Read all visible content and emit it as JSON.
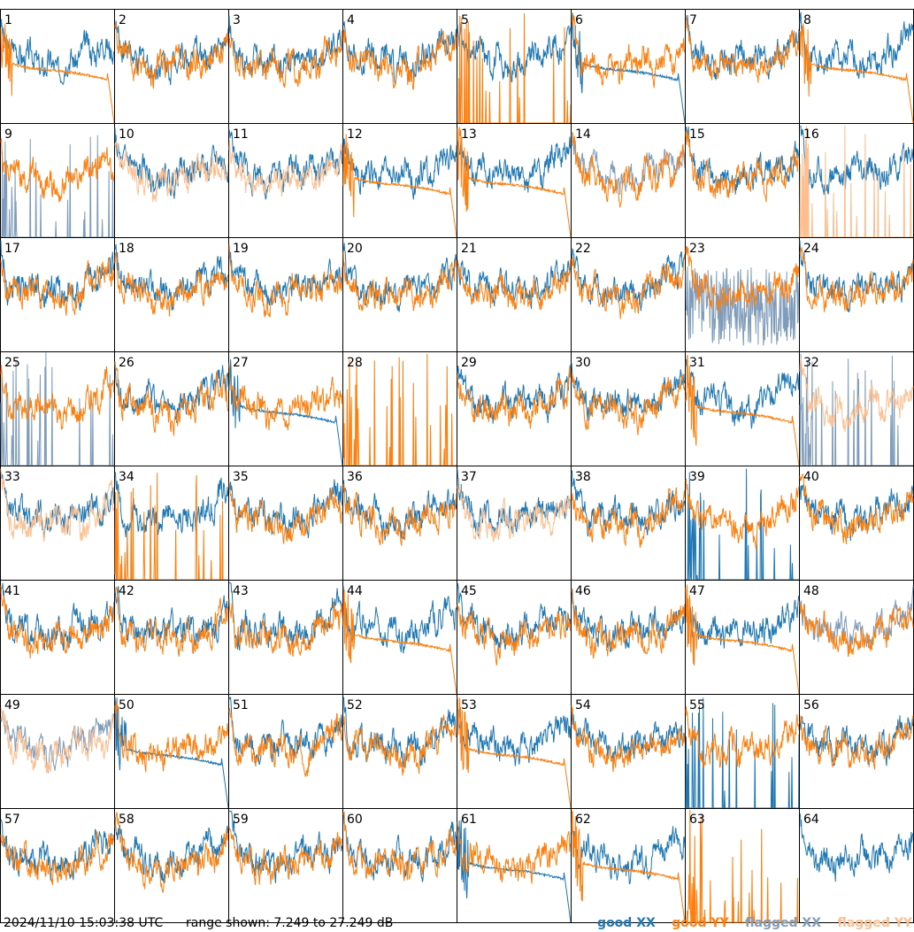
{
  "chart_data": {
    "type": "line",
    "layout": "8x8 grid of per-antenna spectra",
    "panels": [
      "1",
      "2",
      "3",
      "4",
      "5",
      "6",
      "7",
      "8",
      "9",
      "10",
      "11",
      "12",
      "13",
      "14",
      "15",
      "16",
      "17",
      "18",
      "19",
      "20",
      "21",
      "22",
      "23",
      "24",
      "25",
      "26",
      "27",
      "28",
      "29",
      "30",
      "31",
      "32",
      "33",
      "34",
      "35",
      "36",
      "37",
      "38",
      "39",
      "40",
      "41",
      "42",
      "43",
      "44",
      "45",
      "46",
      "47",
      "48",
      "49",
      "50",
      "51",
      "52",
      "53",
      "54",
      "55",
      "56",
      "57",
      "58",
      "59",
      "60",
      "61",
      "62",
      "63",
      "64"
    ],
    "ylim": [
      7.249,
      27.249
    ],
    "yunit": "dB",
    "series": [
      {
        "name": "good XX",
        "color": "#1f77b4"
      },
      {
        "name": "good YY",
        "color": "#ff7f0e"
      },
      {
        "name": "flagged XX",
        "color": "#7f9cba"
      },
      {
        "name": "flagged YY",
        "color": "#fdbf8f"
      }
    ],
    "panel_states": {
      "1": {
        "xx": "good",
        "yy": "good",
        "yy_shape": "decay"
      },
      "5": {
        "xx": "good",
        "yy": "good",
        "yy_shape": "spikes"
      },
      "6": {
        "xx": "good",
        "yy": "good",
        "xx_shape": "decay"
      },
      "8": {
        "xx": "good",
        "yy": "good",
        "yy_shape": "decay"
      },
      "9": {
        "xx": "flagged",
        "yy": "good",
        "xx_shape": "spikes"
      },
      "10": {
        "xx": "good",
        "yy": "flagged"
      },
      "11": {
        "xx": "good",
        "yy": "flagged"
      },
      "12": {
        "xx": "good",
        "yy": "good",
        "yy_shape": "decay"
      },
      "13": {
        "xx": "good",
        "yy": "good",
        "yy_shape": "decay"
      },
      "14": {
        "xx": "flagged",
        "yy": "good"
      },
      "16": {
        "xx": "good",
        "yy": "flagged",
        "yy_shape": "spikes"
      },
      "23": {
        "xx": "flagged",
        "yy": "good",
        "xx_shape": "noise"
      },
      "25": {
        "xx": "flagged",
        "yy": "good",
        "xx_shape": "spikes"
      },
      "27": {
        "xx": "good",
        "yy": "good",
        "xx_shape": "decay"
      },
      "28": {
        "xx": "none",
        "yy": "good",
        "yy_shape": "spikes"
      },
      "31": {
        "xx": "good",
        "yy": "good",
        "yy_shape": "decay"
      },
      "32": {
        "xx": "flagged",
        "yy": "flagged",
        "xx_shape": "spikes"
      },
      "33": {
        "xx": "good",
        "yy": "flagged"
      },
      "34": {
        "xx": "good",
        "yy": "good",
        "yy_shape": "spikes"
      },
      "37": {
        "xx": "good",
        "yy": "flagged"
      },
      "39": {
        "xx": "good",
        "yy": "good",
        "xx_shape": "spikes"
      },
      "44": {
        "xx": "good",
        "yy": "good",
        "yy_shape": "decay"
      },
      "47": {
        "xx": "good",
        "yy": "good",
        "yy_shape": "decay"
      },
      "48": {
        "xx": "flagged",
        "yy": "good"
      },
      "49": {
        "xx": "flagged",
        "yy": "flagged"
      },
      "50": {
        "xx": "good",
        "yy": "good",
        "xx_shape": "decay"
      },
      "53": {
        "xx": "good",
        "yy": "good",
        "yy_shape": "decay"
      },
      "55": {
        "xx": "good",
        "yy": "good",
        "xx_shape": "spikes"
      },
      "61": {
        "xx": "good",
        "yy": "good",
        "xx_shape": "decay"
      },
      "62": {
        "xx": "good",
        "yy": "good",
        "yy_shape": "decay"
      },
      "63": {
        "xx": "none",
        "yy": "good",
        "yy_shape": "spikes"
      },
      "64": {
        "xx": "good",
        "yy": "none"
      }
    }
  },
  "footer": {
    "timestamp": "2024/11/10 15:03:38 UTC",
    "range_text": "range shown: 7.249 to 27.249 dB"
  },
  "legend": {
    "good_xx": "good XX",
    "good_yy": "good YY",
    "flagged_xx": "flagged XX",
    "flagged_yy": "flagged YY"
  },
  "colors": {
    "good_xx": "#1f77b4",
    "good_yy": "#ff7f0e",
    "flagged_xx": "#7f9cba",
    "flagged_yy": "#fdbf8f"
  }
}
